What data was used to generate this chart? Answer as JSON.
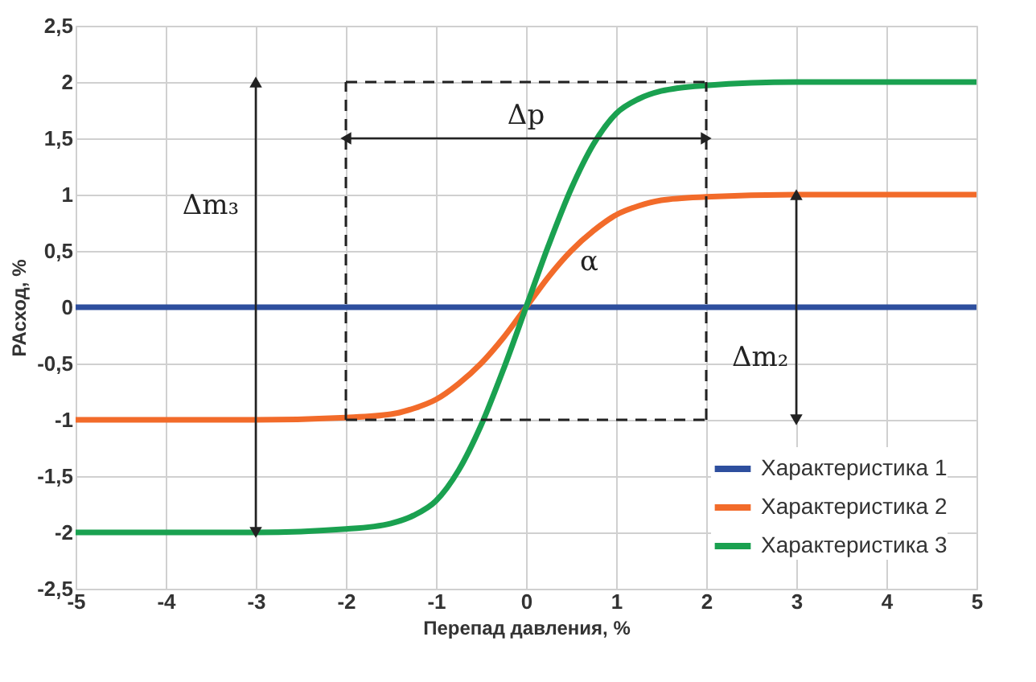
{
  "chart_data": {
    "type": "line",
    "xlabel": "Перепад давления, %",
    "ylabel": "РАсход, %",
    "x": [
      -5,
      -3,
      -2,
      -1.5,
      -1.25,
      -1,
      -0.75,
      -0.5,
      -0.25,
      0,
      0.25,
      0.5,
      0.75,
      1,
      1.25,
      1.5,
      2,
      3,
      5
    ],
    "series": [
      {
        "name": "Характеристика 1",
        "color": "#2e4f9e",
        "x": [
          -5,
          5
        ],
        "values": [
          0,
          0
        ]
      },
      {
        "name": "Характеристика 2",
        "color": "#f26b2a",
        "values": [
          -1,
          -1,
          -0.98,
          -0.95,
          -0.9,
          -0.82,
          -0.68,
          -0.5,
          -0.27,
          0,
          0.27,
          0.5,
          0.68,
          0.82,
          0.9,
          0.95,
          0.98,
          1,
          1
        ]
      },
      {
        "name": "Характеристика 3",
        "color": "#1aa150",
        "values": [
          -2,
          -2,
          -1.97,
          -1.92,
          -1.85,
          -1.72,
          -1.45,
          -1.05,
          -0.55,
          0,
          0.55,
          1.05,
          1.45,
          1.72,
          1.85,
          1.92,
          1.97,
          2,
          2
        ]
      },
      {
        "color": "#222222",
        "x": [
          -2,
          2
        ],
        "values": [
          1.5,
          1.5
        ],
        "marker": "triangle"
      },
      {
        "color": "#222222",
        "x": [
          -3,
          -3
        ],
        "values": [
          -2,
          2
        ],
        "marker": "triangle"
      },
      {
        "color": "#222222",
        "x": [
          3,
          3
        ],
        "values": [
          -1,
          1
        ],
        "marker": "triangle"
      }
    ],
    "xlim": [
      -5,
      5
    ],
    "xticks": [
      -5,
      -4,
      -3,
      -2,
      -1,
      0,
      1,
      2,
      3,
      4,
      5
    ],
    "ylim": [
      -2.5,
      2.5
    ],
    "yticks": [
      {
        "value": -2.5,
        "label": "-2,5"
      },
      -2,
      {
        "value": -1.5,
        "label": "-1,5"
      },
      -1,
      {
        "value": -0.5,
        "label": "-0,5"
      },
      0,
      {
        "value": 0.5,
        "label": "0,5"
      },
      1,
      {
        "value": 1.5,
        "label": "1,5"
      },
      2,
      {
        "value": 2.5,
        "label": "2,5"
      }
    ],
    "grid": true,
    "legend": "bottom right",
    "marker": "none",
    "line_style": "solid",
    "ref_lines": [
      {
        "axis": "x",
        "value": -2,
        "line_style": "dashed"
      },
      {
        "axis": "x",
        "value": 2,
        "line_style": "dashed"
      },
      {
        "axis": "y",
        "value": 2,
        "line_style": "dashed"
      },
      {
        "axis": "y",
        "value": -1,
        "line_style": "dashed"
      }
    ],
    "annotations": [
      "Δp",
      "Δm₃",
      "Δm₂",
      "α"
    ]
  }
}
